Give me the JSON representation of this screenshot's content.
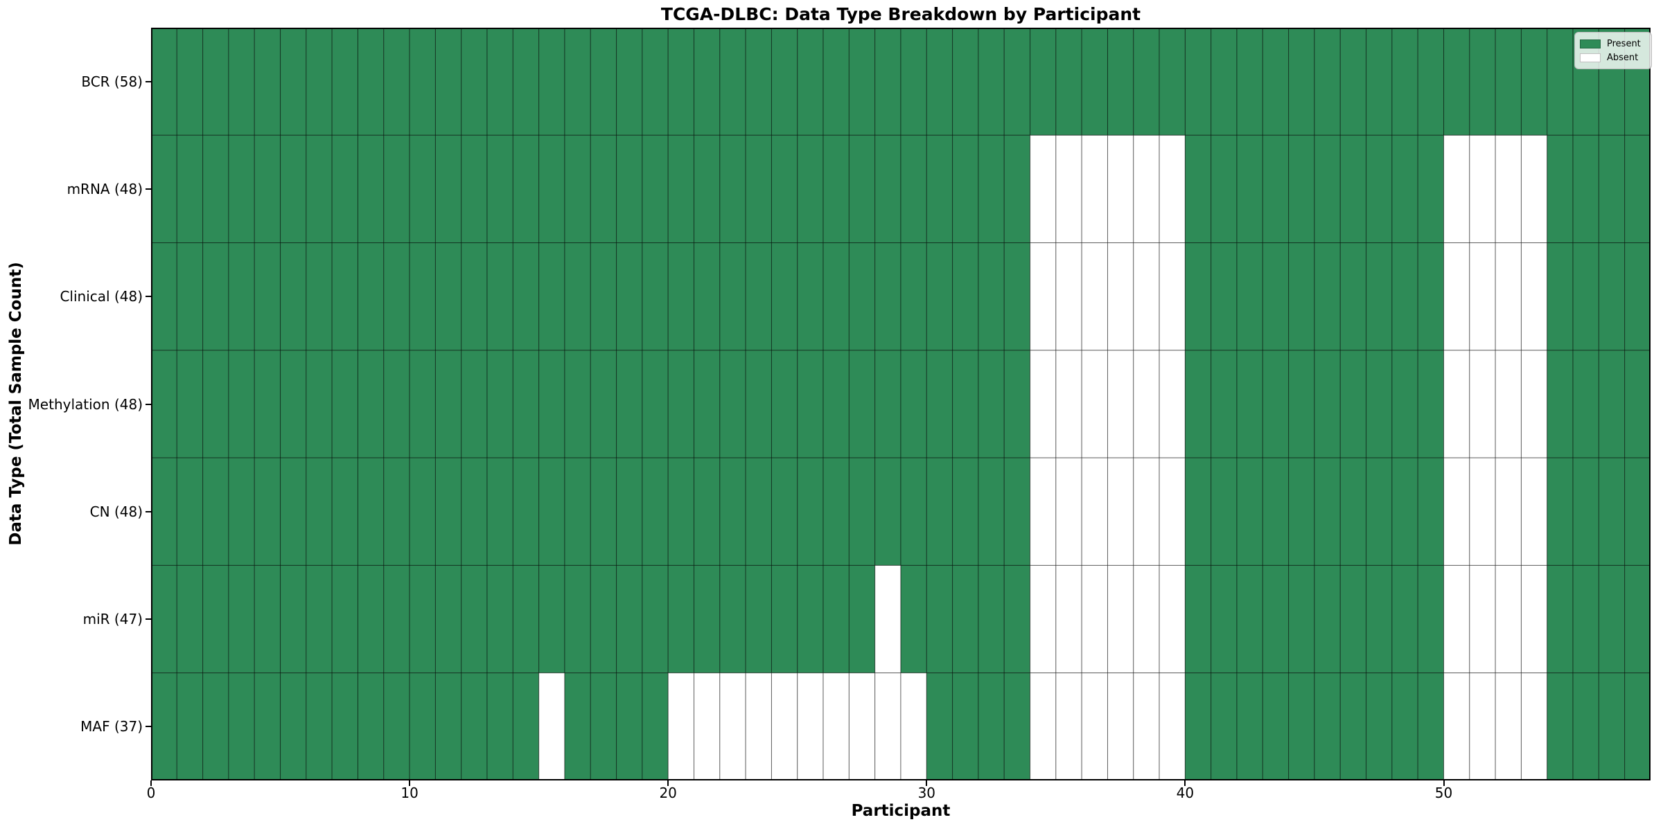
{
  "figure": {
    "title": "TCGA-DLBC: Data Type Breakdown by Participant"
  },
  "legend": {
    "items": [
      {
        "label": "Present",
        "color": "#2e8b57"
      },
      {
        "label": "Absent",
        "color": "#ffffff"
      }
    ]
  },
  "chart_data": {
    "type": "heatmap",
    "title": "TCGA-DLBC: Data Type Breakdown by Participant",
    "xlabel": "Participant",
    "ylabel": "Data Type (Total Sample Count)",
    "n_participants": 58,
    "x_range": [
      0,
      58
    ],
    "x_ticks": [
      "0",
      "10",
      "20",
      "30",
      "40",
      "50"
    ],
    "x_tick_values": [
      0,
      10,
      20,
      30,
      40,
      50
    ],
    "legend_position": "upper right",
    "grid": true,
    "colors": {
      "present": "#2e8b57",
      "absent": "#ffffff",
      "cell_edge": "rgba(0,0,0,0.5)",
      "spine": "#000000"
    },
    "rows": [
      {
        "label": "BCR (58)",
        "data_type": "BCR",
        "total_samples": 58,
        "absent_participants": []
      },
      {
        "label": "mRNA (48)",
        "data_type": "mRNA",
        "total_samples": 48,
        "absent_participants": [
          34,
          35,
          36,
          37,
          38,
          39,
          50,
          51,
          52,
          53
        ]
      },
      {
        "label": "Clinical (48)",
        "data_type": "Clinical",
        "total_samples": 48,
        "absent_participants": [
          34,
          35,
          36,
          37,
          38,
          39,
          50,
          51,
          52,
          53
        ]
      },
      {
        "label": "Methylation (48)",
        "data_type": "Methylation",
        "total_samples": 48,
        "absent_participants": [
          34,
          35,
          36,
          37,
          38,
          39,
          50,
          51,
          52,
          53
        ]
      },
      {
        "label": "CN (48)",
        "data_type": "CN",
        "total_samples": 48,
        "absent_participants": [
          34,
          35,
          36,
          37,
          38,
          39,
          50,
          51,
          52,
          53
        ]
      },
      {
        "label": "miR (47)",
        "data_type": "miR",
        "total_samples": 47,
        "absent_participants": [
          28,
          34,
          35,
          36,
          37,
          38,
          39,
          50,
          51,
          52,
          53
        ]
      },
      {
        "label": "MAF (37)",
        "data_type": "MAF",
        "total_samples": 37,
        "absent_participants": [
          15,
          20,
          21,
          22,
          23,
          24,
          25,
          26,
          27,
          28,
          29,
          34,
          35,
          36,
          37,
          38,
          39,
          50,
          51,
          52,
          53
        ]
      }
    ]
  }
}
